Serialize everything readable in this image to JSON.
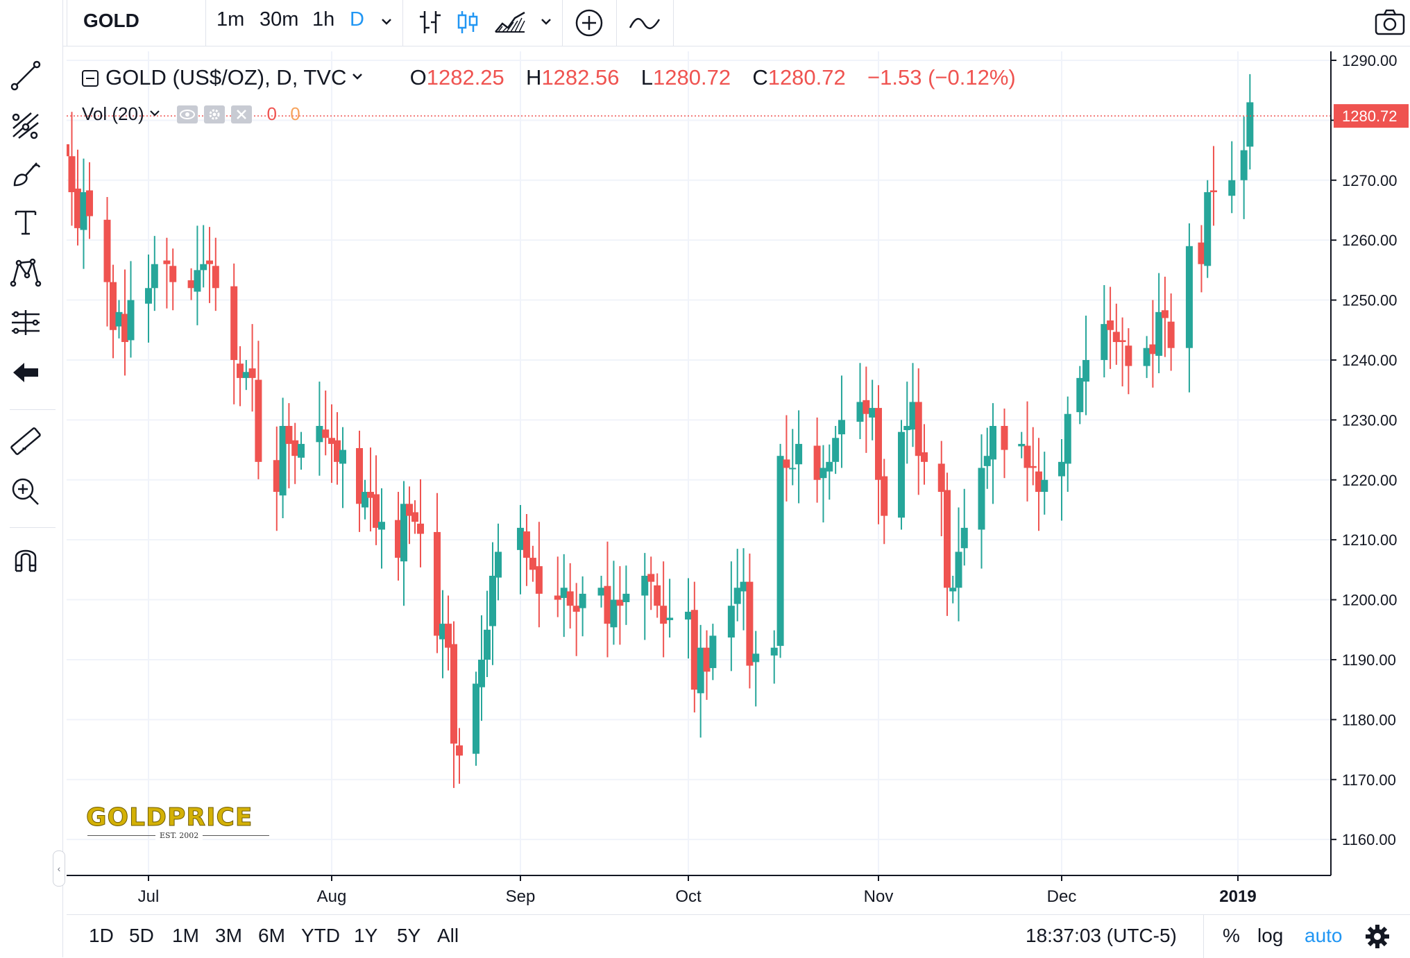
{
  "toolbar": {
    "symbol": "GOLD",
    "timeframes": [
      "1m",
      "30m",
      "1h",
      "D"
    ],
    "active_timeframe": "D"
  },
  "legend": {
    "title": "GOLD (US$/OZ), D, TVC",
    "o_label": "O",
    "open": "1282.25",
    "h_label": "H",
    "high": "1282.56",
    "l_label": "L",
    "low": "1280.72",
    "c_label": "C",
    "close": "1280.72",
    "change": "−1.53 (−0.12%)"
  },
  "volume_legend": {
    "label": "Vol (20)",
    "value_1": "0",
    "value_2": "0"
  },
  "watermark": {
    "brand": "GOLDPRICE",
    "est": "EST. 2002"
  },
  "bottom": {
    "ranges": [
      "1D",
      "5D",
      "1M",
      "3M",
      "6M",
      "YTD",
      "1Y",
      "5Y",
      "All"
    ],
    "clock": "18:37:03 (UTC-5)",
    "percent": "%",
    "log": "log",
    "auto": "auto"
  },
  "colors": {
    "up": "#26a69a",
    "down": "#ef5350",
    "accent": "#2196f3",
    "grid": "#f0f3fa"
  },
  "chart_data": {
    "type": "candlestick",
    "y_ticks": [
      "1290.00",
      "1280.00",
      "1270.00",
      "1260.00",
      "1250.00",
      "1240.00",
      "1230.00",
      "1220.00",
      "1210.00",
      "1200.00",
      "1190.00",
      "1180.00",
      "1170.00",
      "1160.00"
    ],
    "ylim": [
      1154,
      1291.5
    ],
    "x_ticks": [
      {
        "label": "Jul",
        "date": "2018-07-02"
      },
      {
        "label": "Aug",
        "date": "2018-08-01"
      },
      {
        "label": "Sep",
        "date": "2018-09-04"
      },
      {
        "label": "Oct",
        "date": "2018-10-01"
      },
      {
        "label": "Nov",
        "date": "2018-11-01"
      },
      {
        "label": "Dec",
        "date": "2018-12-03"
      },
      {
        "label": "2019",
        "date": "2019-01-01"
      }
    ],
    "last_price": "1280.72",
    "closes": [
      1274,
      1268,
      1262,
      1268,
      1264,
      1253,
      1245,
      1248,
      1243,
      1250,
      1252,
      1256,
      1256,
      1253,
      1252,
      1255,
      1256,
      1256,
      1252,
      1240,
      1237,
      1238,
      1237,
      1223,
      1218,
      1229,
      1226,
      1224,
      1226,
      1229,
      1227,
      1226,
      1223,
      1225,
      1216,
      1218,
      1217,
      1212,
      1213,
      1207,
      1216,
      1214,
      1213,
      1211,
      1194,
      1196,
      1192,
      1176,
      1174,
      1186,
      1190,
      1195,
      1204,
      1208,
      1212,
      1207,
      1205,
      1201,
      1200,
      1202,
      1199,
      1198,
      1201,
      1202,
      1196,
      1200,
      1199,
      1201,
      1204,
      1203,
      1199,
      1196,
      1197,
      1198,
      1185,
      1192,
      1188,
      1194,
      1199,
      1202,
      1203,
      1189,
      1191,
      1192,
      1224,
      1222,
      1222,
      1226,
      1220,
      1222,
      1223,
      1227,
      1230,
      1233,
      1231,
      1232,
      1220,
      1214,
      1228,
      1229,
      1233,
      1224,
      1223,
      1218,
      1202,
      1202,
      1208,
      1212,
      1222,
      1224,
      1229,
      1225,
      1226,
      1222,
      1222,
      1218,
      1220,
      1223,
      1231,
      1237,
      1240,
      1246,
      1245,
      1243,
      1243,
      1239,
      1242,
      1241,
      1248,
      1247,
      1242,
      1259,
      1256,
      1268,
      1268,
      1270,
      1275,
      1283,
      1281,
      1282,
      1281
    ]
  }
}
